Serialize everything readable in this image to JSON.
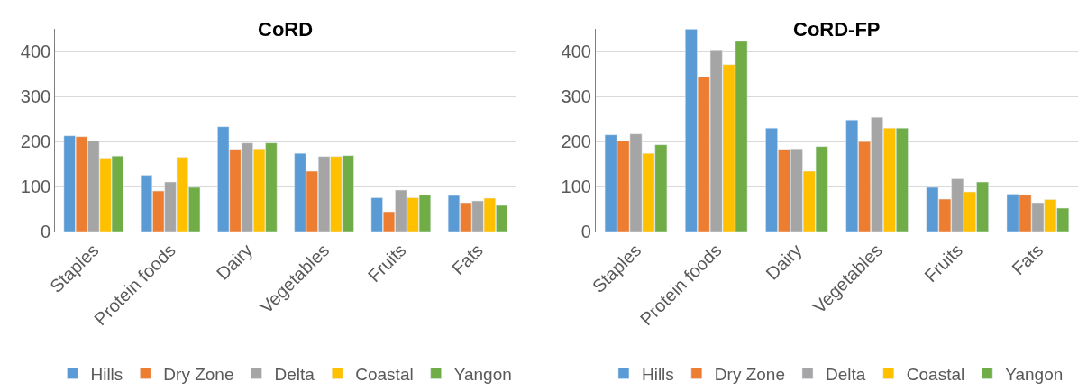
{
  "chart_data": [
    {
      "type": "bar",
      "title": "CoRD",
      "categories": [
        "Staples",
        "Protein foods",
        "Dairy",
        "Vegetables",
        "Fruits",
        "Fats"
      ],
      "ylim": [
        0,
        450
      ],
      "yticks": [
        0,
        100,
        200,
        300,
        400
      ],
      "grid": "y",
      "legend": "bottom",
      "series": [
        {
          "name": "Hills",
          "color": "#5b9bd5",
          "values": [
            213,
            125,
            233,
            174,
            75,
            80
          ]
        },
        {
          "name": "Dry Zone",
          "color": "#ed7d31",
          "values": [
            211,
            90,
            183,
            134,
            44,
            64
          ]
        },
        {
          "name": "Delta",
          "color": "#a5a5a5",
          "values": [
            202,
            110,
            197,
            167,
            92,
            68
          ]
        },
        {
          "name": "Coastal",
          "color": "#ffc000",
          "values": [
            163,
            165,
            184,
            167,
            75,
            74
          ]
        },
        {
          "name": "Yangon",
          "color": "#70ad47",
          "values": [
            168,
            98,
            197,
            169,
            81,
            58
          ]
        }
      ]
    },
    {
      "type": "bar",
      "title": "CoRD-FP",
      "categories": [
        "Staples",
        "Protein foods",
        "Dairy",
        "Vegetables",
        "Fruits",
        "Fats"
      ],
      "ylim": [
        0,
        450
      ],
      "yticks": [
        0,
        100,
        200,
        300,
        400
      ],
      "grid": "y",
      "legend": "bottom",
      "series": [
        {
          "name": "Hills",
          "color": "#5b9bd5",
          "values": [
            215,
            450,
            230,
            248,
            98,
            83
          ]
        },
        {
          "name": "Dry Zone",
          "color": "#ed7d31",
          "values": [
            202,
            344,
            183,
            200,
            72,
            81
          ]
        },
        {
          "name": "Delta",
          "color": "#a5a5a5",
          "values": [
            217,
            402,
            184,
            254,
            117,
            64
          ]
        },
        {
          "name": "Coastal",
          "color": "#ffc000",
          "values": [
            174,
            371,
            134,
            230,
            88,
            71
          ]
        },
        {
          "name": "Yangon",
          "color": "#70ad47",
          "values": [
            193,
            423,
            189,
            230,
            110,
            52
          ]
        }
      ]
    }
  ]
}
